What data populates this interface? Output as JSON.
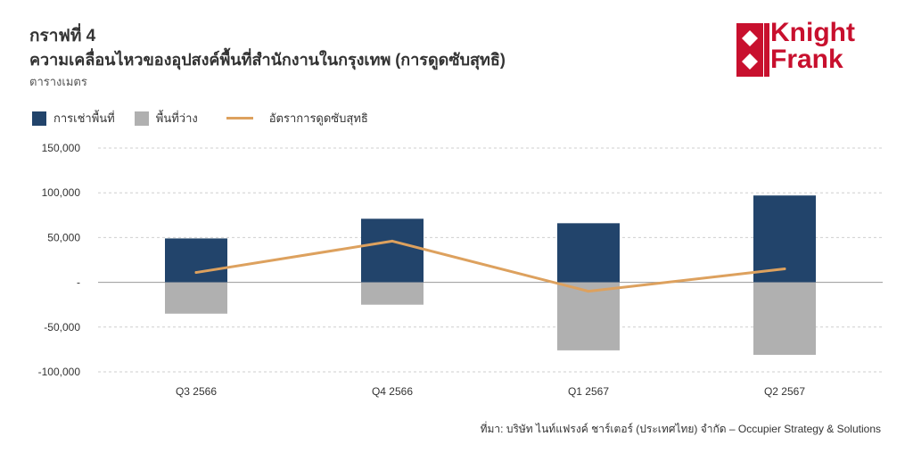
{
  "header": {
    "figure_label": "กราฟที่ 4",
    "title": "ความเคลื่อนไหวของอุปสงค์พื้นที่สำนักงานในกรุงเทพ (การดูดซับสุทธิ)",
    "unit": "ตารางเมตร"
  },
  "logo": {
    "line1": "Knight",
    "line2": "Frank",
    "color": "#c8102e"
  },
  "legend": [
    {
      "label": "การเช่าพื้นที่",
      "color": "#22446b",
      "kind": "box"
    },
    {
      "label": "พื้นที่ว่าง",
      "color": "#b0b0b0",
      "kind": "box"
    },
    {
      "label": "อัตราการดูดซับสุทธิ",
      "color": "#dda15e",
      "kind": "line"
    }
  ],
  "chart_data": {
    "type": "bar",
    "categories": [
      "Q3 2566",
      "Q4 2566",
      "Q1 2567",
      "Q2 2567"
    ],
    "series": [
      {
        "name": "การเช่าพื้นที่",
        "type": "bar",
        "color": "#22446b",
        "values": [
          49000,
          71000,
          66000,
          97000
        ]
      },
      {
        "name": "พื้นที่ว่าง",
        "type": "bar",
        "color": "#b0b0b0",
        "values": [
          -35000,
          -25000,
          -76000,
          -81000
        ]
      },
      {
        "name": "อัตราการดูดซับสุทธิ",
        "type": "line",
        "color": "#dda15e",
        "values": [
          11000,
          46000,
          -10000,
          15000
        ]
      }
    ],
    "ylim": [
      -100000,
      150000
    ],
    "yticks": [
      150000,
      100000,
      50000,
      0,
      -50000,
      -100000
    ],
    "ytick_labels": [
      "150,000",
      "100,000",
      "50,000",
      "-",
      "-50,000",
      "-100,000"
    ],
    "grid": true,
    "stacked": true
  },
  "source": "ที่มา: บริษัท ไนท์แฟรงค์ ชาร์เตอร์ (ประเทศไทย) จำกัด – Occupier Strategy & Solutions"
}
